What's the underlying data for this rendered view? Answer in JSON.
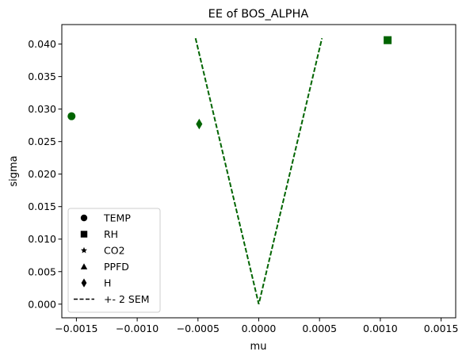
{
  "chart_data": {
    "type": "scatter",
    "title": "EE of BOS_ALPHA",
    "xlabel": "mu",
    "ylabel": "sigma",
    "xlim": [
      -0.00162,
      0.00162
    ],
    "ylim": [
      -0.0021,
      0.043
    ],
    "x_ticks": [
      -0.0015,
      -0.001,
      -0.0005,
      0.0,
      0.0005,
      0.001,
      0.0015
    ],
    "x_tick_labels": [
      "−0.0015",
      "−0.0010",
      "−0.0005",
      "0.0000",
      "0.0005",
      "0.0010",
      "0.0015"
    ],
    "y_ticks": [
      0.0,
      0.005,
      0.01,
      0.015,
      0.02,
      0.025,
      0.03,
      0.035,
      0.04
    ],
    "y_tick_labels": [
      "0.000",
      "0.005",
      "0.010",
      "0.015",
      "0.020",
      "0.025",
      "0.030",
      "0.035",
      "0.040"
    ],
    "grid": false,
    "legend_placement": "lower-left",
    "marker_color": "#006400",
    "series": [
      {
        "name": "TEMP",
        "marker": "circle",
        "x": -0.00154,
        "y": 0.0289
      },
      {
        "name": "RH",
        "marker": "square",
        "x": 0.00106,
        "y": 0.0406
      },
      {
        "name": "CO2",
        "marker": "star",
        "x": null,
        "y": null
      },
      {
        "name": "PPFD",
        "marker": "triangle",
        "x": null,
        "y": null
      },
      {
        "name": "H",
        "marker": "diamond",
        "x": -0.00049,
        "y": 0.0277
      }
    ],
    "sem_line": {
      "name": "+- 2 SEM",
      "style": "dashed",
      "color": "#006400",
      "points": [
        [
          -0.00052,
          0.0409
        ],
        [
          0.0,
          0.0
        ],
        [
          0.00052,
          0.0409
        ]
      ]
    }
  }
}
